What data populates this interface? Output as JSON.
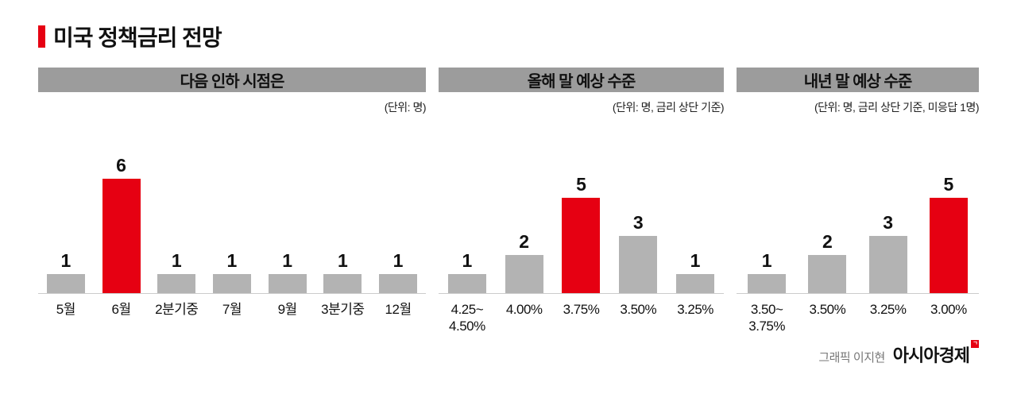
{
  "page": {
    "title": "미국 정책금리 전망"
  },
  "footer": {
    "credit": "그래픽 이지현",
    "brand": "아시아경제",
    "brand_mark": "ㄱ"
  },
  "colors": {
    "accent_red": "#e60012",
    "bar_gray": "#b3b3b3",
    "header_gray": "#9c9c9c"
  },
  "chart_data": [
    {
      "type": "bar",
      "title": "다음 인하 시점은",
      "unit_note": "(단위: 명)",
      "categories": [
        "5월",
        "6월",
        "2분기중",
        "7월",
        "9월",
        "3분기중",
        "12월"
      ],
      "values": [
        1,
        6,
        1,
        1,
        1,
        1,
        1
      ],
      "highlight_index": 1,
      "highlight_category": "6월",
      "ylim": [
        0,
        6
      ],
      "legend": "none",
      "grid": false
    },
    {
      "type": "bar",
      "title": "올해 말 예상 수준",
      "unit_note": "(단위: 명, 금리 상단 기준)",
      "categories": [
        "4.25~\n4.50%",
        "4.00%",
        "3.75%",
        "3.50%",
        "3.25%"
      ],
      "values": [
        1,
        2,
        5,
        3,
        1
      ],
      "highlight_index": 2,
      "highlight_category": "3.75%",
      "ylim": [
        0,
        6
      ],
      "legend": "none",
      "grid": false
    },
    {
      "type": "bar",
      "title": "내년 말 예상 수준",
      "unit_note": "(단위: 명, 금리 상단 기준, 미응답 1명)",
      "categories": [
        "3.50~\n3.75%",
        "3.50%",
        "3.25%",
        "3.00%"
      ],
      "values": [
        1,
        2,
        3,
        5
      ],
      "highlight_index": 3,
      "highlight_category": "3.00%",
      "ylim": [
        0,
        6
      ],
      "legend": "none",
      "grid": false
    }
  ]
}
